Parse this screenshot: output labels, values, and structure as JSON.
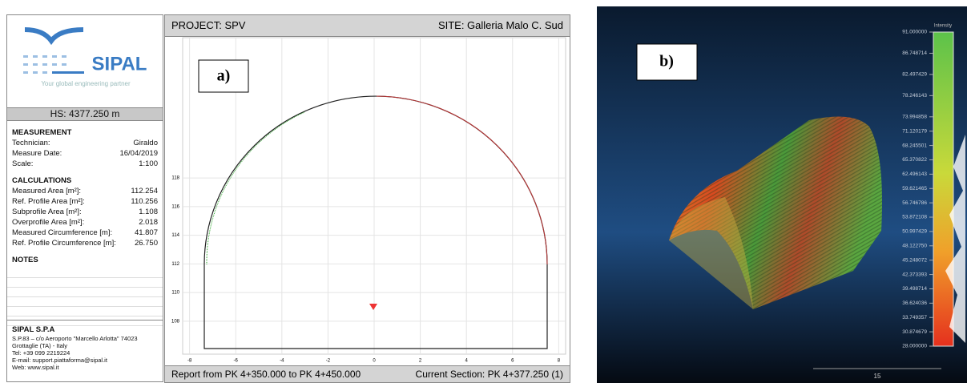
{
  "logo": {
    "name": "SIPAL",
    "tagline": "Your global engineering partner"
  },
  "header": {
    "hs": "HS: 4377.250 m",
    "project": "PROJECT: SPV",
    "site": "SITE: Galleria Malo C. Sud"
  },
  "measurement": {
    "title": "MEASUREMENT",
    "rows": [
      [
        "Technician:",
        "Giraldo"
      ],
      [
        "Measure Date:",
        "16/04/2019"
      ],
      [
        "Scale:",
        "1:100"
      ]
    ]
  },
  "calculations": {
    "title": "CALCULATIONS",
    "rows": [
      [
        "Measured Area [m²]:",
        "112.254"
      ],
      [
        "Ref. Profile Area [m²]:",
        "110.256"
      ],
      [
        "Subprofile Area [m²]:",
        "1.108"
      ],
      [
        "Overprofile Area [m²]:",
        "2.018"
      ],
      [
        "Measured Circumference [m]:",
        "41.807"
      ],
      [
        "Ref. Profile Circumference [m]:",
        "26.750"
      ]
    ]
  },
  "notes": {
    "title": "NOTES"
  },
  "company": {
    "name": "SIPAL S.P.A",
    "lines": [
      "S.P.83 – c/o Aeroporto \"Marcello Arlotta\" 74023",
      "Grottaglie (TA) - Italy",
      "Tel: +39 099 2219224",
      "E-mail: support.piattaforma@sipal.it",
      "Web: www.sipal.it"
    ]
  },
  "footer": {
    "report": "Report from PK 4+350.000 to PK 4+450.000",
    "section": "Current Section: PK 4+377.250 (1)"
  },
  "plot": {
    "label": "a)",
    "xlim": [
      -8.3,
      8.3
    ],
    "ylim": [
      105.7,
      127.8
    ],
    "xticks": [
      -8,
      -6,
      -4,
      -2,
      0,
      2,
      4,
      6,
      8
    ],
    "yticks": [
      108,
      110,
      112,
      114,
      116,
      118
    ],
    "grid": true
  },
  "cloud": {
    "label": "b)",
    "scale": "15",
    "colorbar": {
      "title": "Intensity",
      "lim": [
        28,
        91
      ],
      "ticks": [
        {
          "value": 91,
          "label": "91.000000"
        },
        {
          "value": 86.748714,
          "label": "86.748714"
        },
        {
          "value": 82.497429,
          "label": "82.497429"
        },
        {
          "value": 78.246143,
          "label": "78.246143"
        },
        {
          "value": 73.994858,
          "label": "73.994858"
        },
        {
          "value": 71.120179,
          "label": "71.120179"
        },
        {
          "value": 68.245501,
          "label": "68.245501"
        },
        {
          "value": 65.370822,
          "label": "65.370822"
        },
        {
          "value": 62.496143,
          "label": "62.496143"
        },
        {
          "value": 59.621465,
          "label": "59.621465"
        },
        {
          "value": 56.746786,
          "label": "56.746786"
        },
        {
          "value": 53.872108,
          "label": "53.872108"
        },
        {
          "value": 50.997429,
          "label": "50.997429"
        },
        {
          "value": 48.12275,
          "label": "48.122750"
        },
        {
          "value": 45.248072,
          "label": "45.248072"
        },
        {
          "value": 42.373393,
          "label": "42.373393"
        },
        {
          "value": 39.498714,
          "label": "39.498714"
        },
        {
          "value": 36.624036,
          "label": "36.624036"
        },
        {
          "value": 33.749357,
          "label": "33.749357"
        },
        {
          "value": 30.874679,
          "label": "30.874679"
        },
        {
          "value": 28,
          "label": "28.000000"
        }
      ]
    }
  }
}
